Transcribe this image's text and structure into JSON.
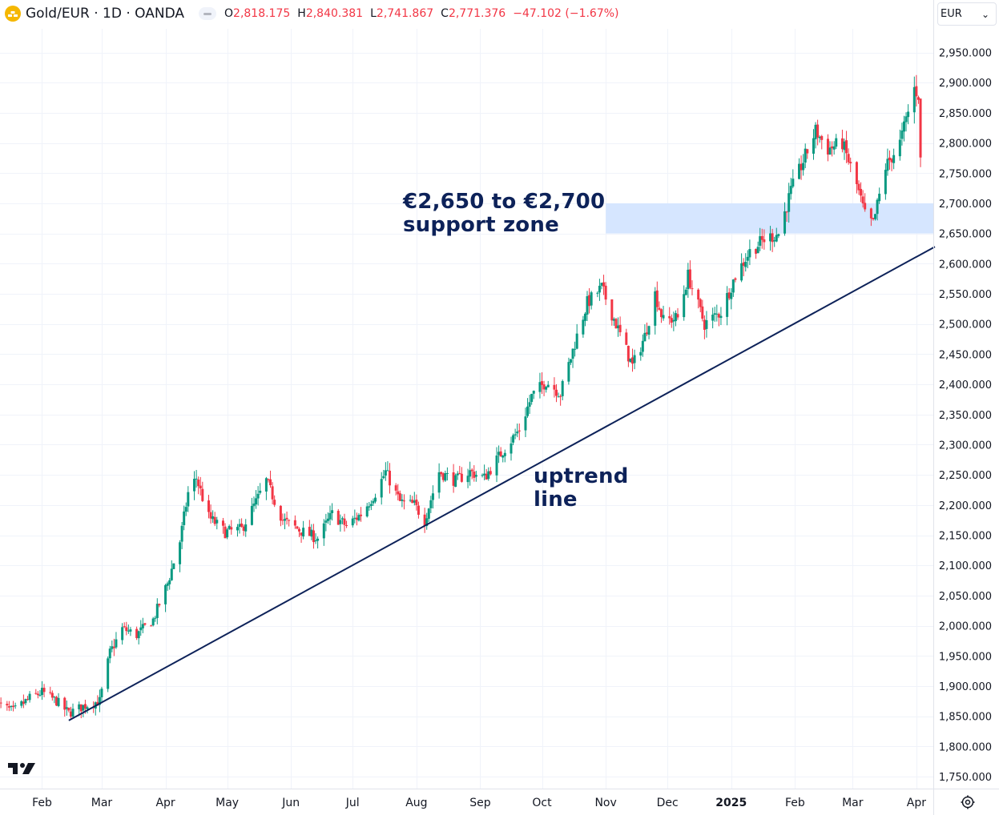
{
  "header": {
    "symbol": "Gold/EUR · 1D · OANDA",
    "ohlc": [
      {
        "k": "O",
        "v": "2,818.175"
      },
      {
        "k": "H",
        "v": "2,840.381"
      },
      {
        "k": "L",
        "v": "2,741.867"
      },
      {
        "k": "C",
        "v": "2,771.376"
      }
    ],
    "change": "−47.102 (−1.67%)",
    "currency": "EUR",
    "currency_caret": "⌄"
  },
  "annotations": {
    "support_zone_label": "€2,650 to €2,700\nsupport zone",
    "trendline_label": "uptrend\nline"
  },
  "colors": {
    "up": "#089981",
    "down": "#f23645",
    "zone_fill": "#d6e6ff",
    "trendline": "#0d2259",
    "grid": "#f0f3fa",
    "axis_text": "#131722"
  },
  "icons": {
    "logo": "tradingview-logo-icon",
    "symbol": "gold-bars-icon",
    "settings": "settings-gear-icon"
  },
  "chart_data": {
    "type": "candlestick",
    "title": "Gold/EUR · 1D · OANDA",
    "x_range": [
      "2024-01-10",
      "2025-04-10"
    ],
    "ylim": [
      1725,
      2975
    ],
    "y_ticks": [
      "1,750.000",
      "1,800.000",
      "1,850.000",
      "1,900.000",
      "1,950.000",
      "2,000.000",
      "2,050.000",
      "2,100.000",
      "2,150.000",
      "2,200.000",
      "2,250.000",
      "2,300.000",
      "2,350.000",
      "2,400.000",
      "2,450.000",
      "2,500.000",
      "2,550.000",
      "2,600.000",
      "2,650.000",
      "2,700.000",
      "2,750.000",
      "2,800.000",
      "2,850.000",
      "2,900.000",
      "2,950.000"
    ],
    "x_ticks": [
      {
        "label": "Feb",
        "date": "2024-02-01",
        "bold": false
      },
      {
        "label": "Mar",
        "date": "2024-03-01",
        "bold": false
      },
      {
        "label": "Apr",
        "date": "2024-04-01",
        "bold": false
      },
      {
        "label": "May",
        "date": "2024-05-01",
        "bold": false
      },
      {
        "label": "Jun",
        "date": "2024-06-01",
        "bold": false
      },
      {
        "label": "Jul",
        "date": "2024-07-01",
        "bold": false
      },
      {
        "label": "Aug",
        "date": "2024-08-01",
        "bold": false
      },
      {
        "label": "Sep",
        "date": "2024-09-01",
        "bold": false
      },
      {
        "label": "Oct",
        "date": "2024-10-01",
        "bold": false
      },
      {
        "label": "Nov",
        "date": "2024-11-01",
        "bold": false
      },
      {
        "label": "Dec",
        "date": "2024-12-01",
        "bold": false
      },
      {
        "label": "2025",
        "date": "2025-01-01",
        "bold": true
      },
      {
        "label": "Feb",
        "date": "2025-02-01",
        "bold": false
      },
      {
        "label": "Mar",
        "date": "2025-03-01",
        "bold": false
      },
      {
        "label": "Apr",
        "date": "2025-04-01",
        "bold": false
      }
    ],
    "support_zone": {
      "date_from": "2024-11-01",
      "date_to": "2025-04-10",
      "low": 2650,
      "high": 2700
    },
    "trendline": {
      "start": {
        "date": "2024-02-14",
        "price": 1843
      },
      "end": {
        "date": "2025-04-10",
        "price": 2628
      }
    },
    "price_path": [
      {
        "date": "2024-01-10",
        "close": 1870
      },
      {
        "date": "2024-01-18",
        "close": 1858
      },
      {
        "date": "2024-01-26",
        "close": 1880
      },
      {
        "date": "2024-02-01",
        "close": 1890
      },
      {
        "date": "2024-02-08",
        "close": 1875
      },
      {
        "date": "2024-02-14",
        "close": 1855
      },
      {
        "date": "2024-02-22",
        "close": 1868
      },
      {
        "date": "2024-02-29",
        "close": 1875
      },
      {
        "date": "2024-03-05",
        "close": 1955
      },
      {
        "date": "2024-03-11",
        "close": 1995
      },
      {
        "date": "2024-03-18",
        "close": 1985
      },
      {
        "date": "2024-03-26",
        "close": 2010
      },
      {
        "date": "2024-04-02",
        "close": 2070
      },
      {
        "date": "2024-04-08",
        "close": 2140
      },
      {
        "date": "2024-04-12",
        "close": 2220
      },
      {
        "date": "2024-04-16",
        "close": 2245
      },
      {
        "date": "2024-04-22",
        "close": 2180
      },
      {
        "date": "2024-04-30",
        "close": 2155
      },
      {
        "date": "2024-05-08",
        "close": 2160
      },
      {
        "date": "2024-05-15",
        "close": 2205
      },
      {
        "date": "2024-05-20",
        "close": 2240
      },
      {
        "date": "2024-05-28",
        "close": 2175
      },
      {
        "date": "2024-06-07",
        "close": 2155
      },
      {
        "date": "2024-06-14",
        "close": 2145
      },
      {
        "date": "2024-06-21",
        "close": 2185
      },
      {
        "date": "2024-06-28",
        "close": 2165
      },
      {
        "date": "2024-07-05",
        "close": 2185
      },
      {
        "date": "2024-07-12",
        "close": 2220
      },
      {
        "date": "2024-07-17",
        "close": 2255
      },
      {
        "date": "2024-07-24",
        "close": 2205
      },
      {
        "date": "2024-07-31",
        "close": 2200
      },
      {
        "date": "2024-08-05",
        "close": 2175
      },
      {
        "date": "2024-08-12",
        "close": 2255
      },
      {
        "date": "2024-08-20",
        "close": 2240
      },
      {
        "date": "2024-08-27",
        "close": 2255
      },
      {
        "date": "2024-09-03",
        "close": 2245
      },
      {
        "date": "2024-09-12",
        "close": 2290
      },
      {
        "date": "2024-09-20",
        "close": 2325
      },
      {
        "date": "2024-09-26",
        "close": 2380
      },
      {
        "date": "2024-10-03",
        "close": 2405
      },
      {
        "date": "2024-10-10",
        "close": 2385
      },
      {
        "date": "2024-10-18",
        "close": 2480
      },
      {
        "date": "2024-10-23",
        "close": 2535
      },
      {
        "date": "2024-10-30",
        "close": 2560
      },
      {
        "date": "2024-11-06",
        "close": 2500
      },
      {
        "date": "2024-11-14",
        "close": 2430
      },
      {
        "date": "2024-11-20",
        "close": 2480
      },
      {
        "date": "2024-11-25",
        "close": 2550
      },
      {
        "date": "2024-11-29",
        "close": 2505
      },
      {
        "date": "2024-12-06",
        "close": 2510
      },
      {
        "date": "2024-12-11",
        "close": 2580
      },
      {
        "date": "2024-12-19",
        "close": 2500
      },
      {
        "date": "2024-12-27",
        "close": 2520
      },
      {
        "date": "2025-01-03",
        "close": 2580
      },
      {
        "date": "2025-01-10",
        "close": 2620
      },
      {
        "date": "2025-01-17",
        "close": 2640
      },
      {
        "date": "2025-01-24",
        "close": 2650
      },
      {
        "date": "2025-01-30",
        "close": 2720
      },
      {
        "date": "2025-02-05",
        "close": 2770
      },
      {
        "date": "2025-02-11",
        "close": 2820
      },
      {
        "date": "2025-02-17",
        "close": 2790
      },
      {
        "date": "2025-02-24",
        "close": 2800
      },
      {
        "date": "2025-03-03",
        "close": 2730
      },
      {
        "date": "2025-03-07",
        "close": 2680
      },
      {
        "date": "2025-03-11",
        "close": 2665
      },
      {
        "date": "2025-03-17",
        "close": 2760
      },
      {
        "date": "2025-03-24",
        "close": 2800
      },
      {
        "date": "2025-03-31",
        "close": 2890
      },
      {
        "date": "2025-04-02",
        "close": 2880
      },
      {
        "date": "2025-04-03",
        "close": 2771
      }
    ]
  }
}
